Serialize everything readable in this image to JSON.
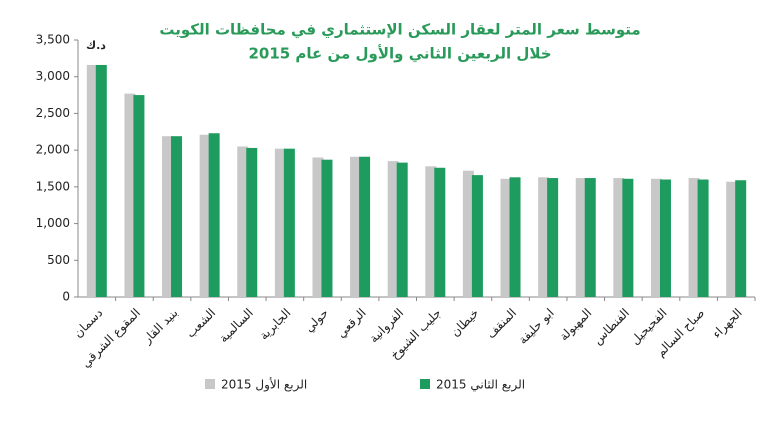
{
  "chart_data": {
    "type": "bar",
    "title": "متوسط سعر المتر لعقار السكن الإستثماري في محافظات الكويت",
    "subtitle": "خلال الربعين  الثاني والأول من عام 2015",
    "unit_label": "د.ك",
    "categories": [
      "دسمان",
      "المقوع الشرقي",
      "بنيد القار",
      "الشعب",
      "السالمية",
      "الجابرية",
      "حولي",
      "الرقعي",
      "الفروانية",
      "جليب الشيوخ",
      "خيطان",
      "المنقف",
      "ابو حليفة",
      "المهبولة",
      "الفنطاس",
      "الفحيحيل",
      "صباح السالم",
      "الجهراء"
    ],
    "series": [
      {
        "name": "الربع الأول 2015",
        "color": "#c8c8c8",
        "values": [
          3160,
          2770,
          2190,
          2210,
          2050,
          2020,
          1900,
          1910,
          1850,
          1780,
          1720,
          1610,
          1630,
          1620,
          1620,
          1610,
          1620,
          1570
        ]
      },
      {
        "name": "الربع الثاني 2015",
        "color": "#1e9b5e",
        "values": [
          3160,
          2750,
          2190,
          2230,
          2030,
          2020,
          1870,
          1910,
          1830,
          1760,
          1660,
          1630,
          1620,
          1620,
          1610,
          1600,
          1600,
          1590
        ]
      }
    ],
    "ylim": [
      0,
      3500
    ],
    "yticks": [
      0,
      500,
      {
        "value": 1000,
        "label": "1,000"
      },
      {
        "value": 1500,
        "label": "1,500"
      },
      {
        "value": 2000,
        "label": "2,000"
      },
      {
        "value": 2500,
        "label": "2,500"
      },
      {
        "value": 3000,
        "label": "3,000"
      },
      {
        "value": 3500,
        "label": "3,500"
      }
    ]
  }
}
